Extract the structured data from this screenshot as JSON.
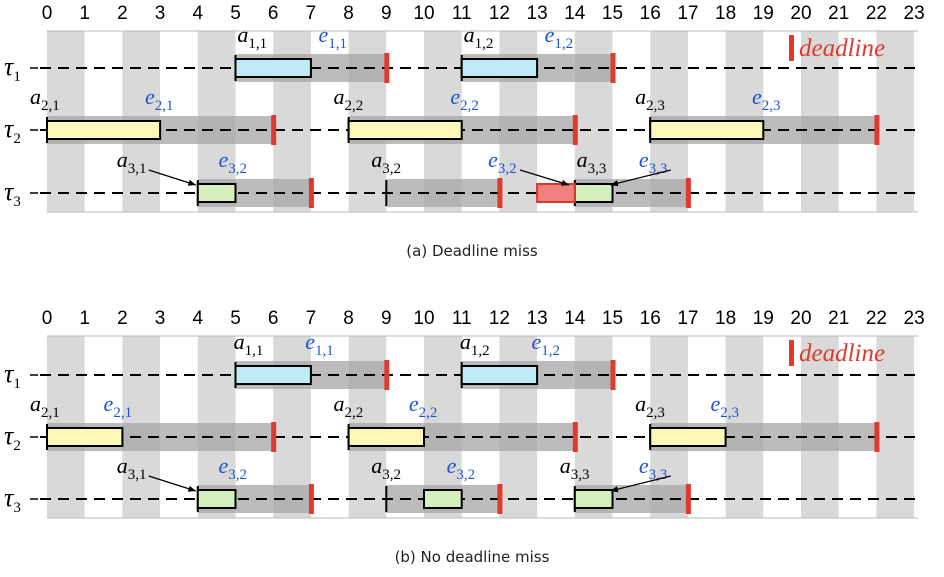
{
  "legend_label": "deadline",
  "time_ticks": [
    "0",
    "1",
    "2",
    "3",
    "4",
    "5",
    "6",
    "7",
    "8",
    "9",
    "10",
    "11",
    "12",
    "13",
    "14",
    "15",
    "16",
    "17",
    "18",
    "19",
    "20",
    "21",
    "22",
    "23"
  ],
  "colors": {
    "stripe": "#d9d9d9",
    "window": "#a6a6a6",
    "window_dark": "#8c8c8c",
    "tau1": "#bfeaf7",
    "tau2": "#fdf7b8",
    "tau3": "#d6f0bd",
    "miss": "#f08080",
    "deadline": "#e03a2f",
    "exec_label": "#1f55d0"
  },
  "panels": [
    {
      "caption": "(a) Deadline miss",
      "tasks": [
        {
          "name": "τ",
          "sub": "1",
          "arrivals": [
            5,
            11
          ],
          "deadlines": [
            9,
            15
          ],
          "windows": [
            [
              5,
              9
            ],
            [
              11,
              15
            ]
          ],
          "jobs": [
            [
              5,
              7
            ],
            [
              11,
              13
            ]
          ],
          "misses": [],
          "labels": [
            {
              "t": 5.05,
              "base": "a",
              "sub": "1,1",
              "kind": "arrival"
            },
            {
              "t": 7.2,
              "base": "e",
              "sub": "1,1",
              "kind": "exec"
            },
            {
              "t": 11.05,
              "base": "a",
              "sub": "1,2",
              "kind": "arrival"
            },
            {
              "t": 13.2,
              "base": "e",
              "sub": "1,2",
              "kind": "exec"
            }
          ]
        },
        {
          "name": "τ",
          "sub": "2",
          "arrivals": [
            0,
            8,
            16
          ],
          "deadlines": [
            6,
            14,
            22
          ],
          "windows": [
            [
              0,
              6
            ],
            [
              8,
              14
            ],
            [
              16,
              22
            ]
          ],
          "jobs": [
            [
              0,
              3
            ],
            [
              8,
              11
            ],
            [
              16,
              19
            ]
          ],
          "misses": [],
          "labels": [
            {
              "t": -0.45,
              "base": "a",
              "sub": "2,1",
              "kind": "arrival"
            },
            {
              "t": 2.6,
              "base": "e",
              "sub": "2,1",
              "kind": "exec"
            },
            {
              "t": 7.6,
              "base": "a",
              "sub": "2,2",
              "kind": "arrival"
            },
            {
              "t": 10.7,
              "base": "e",
              "sub": "2,2",
              "kind": "exec"
            },
            {
              "t": 15.6,
              "base": "a",
              "sub": "2,3",
              "kind": "arrival"
            },
            {
              "t": 18.7,
              "base": "e",
              "sub": "2,3",
              "kind": "exec"
            }
          ]
        },
        {
          "name": "τ",
          "sub": "3",
          "arrivals": [
            4,
            9,
            14
          ],
          "deadlines": [
            7,
            12,
            17
          ],
          "windows": [
            [
              4,
              7
            ],
            [
              9,
              12
            ],
            [
              14,
              17
            ]
          ],
          "jobs": [
            [
              4,
              5
            ],
            [
              14,
              15
            ]
          ],
          "misses": [
            [
              13,
              14
            ]
          ],
          "labels": [
            {
              "t": 1.85,
              "base": "a",
              "sub": "3,1",
              "kind": "arrival",
              "arrow_to": 4
            },
            {
              "t": 4.55,
              "base": "e",
              "sub": "3,2",
              "kind": "exec"
            },
            {
              "t": 8.6,
              "base": "a",
              "sub": "3,2",
              "kind": "arrival"
            },
            {
              "t": 11.7,
              "base": "e",
              "sub": "3,2",
              "kind": "exec",
              "arrow_to": 13.9
            },
            {
              "t": 14.05,
              "base": "a",
              "sub": "3,3",
              "kind": "arrival"
            },
            {
              "t": 15.7,
              "base": "e",
              "sub": "3,3",
              "kind": "exec",
              "arrow_to": 15
            }
          ]
        }
      ]
    },
    {
      "caption": "(b) No deadline miss",
      "tasks": [
        {
          "name": "τ",
          "sub": "1",
          "arrivals": [
            5,
            11
          ],
          "deadlines": [
            9,
            15
          ],
          "windows": [
            [
              5,
              9
            ],
            [
              11,
              15
            ]
          ],
          "jobs": [
            [
              5,
              7
            ],
            [
              11,
              13
            ]
          ],
          "misses": [],
          "labels": [
            {
              "t": 4.95,
              "base": "a",
              "sub": "1,1",
              "kind": "arrival"
            },
            {
              "t": 6.85,
              "base": "e",
              "sub": "1,1",
              "kind": "exec"
            },
            {
              "t": 10.95,
              "base": "a",
              "sub": "1,2",
              "kind": "arrival"
            },
            {
              "t": 12.85,
              "base": "e",
              "sub": "1,2",
              "kind": "exec"
            }
          ]
        },
        {
          "name": "τ",
          "sub": "2",
          "arrivals": [
            0,
            8,
            16
          ],
          "deadlines": [
            6,
            14,
            22
          ],
          "windows": [
            [
              0,
              6
            ],
            [
              8,
              14
            ],
            [
              16,
              22
            ]
          ],
          "jobs": [
            [
              0,
              2
            ],
            [
              8,
              10
            ],
            [
              16,
              18
            ]
          ],
          "misses": [],
          "labels": [
            {
              "t": -0.45,
              "base": "a",
              "sub": "2,1",
              "kind": "arrival"
            },
            {
              "t": 1.5,
              "base": "e",
              "sub": "2,1",
              "kind": "exec"
            },
            {
              "t": 7.6,
              "base": "a",
              "sub": "2,2",
              "kind": "arrival"
            },
            {
              "t": 9.6,
              "base": "e",
              "sub": "2,2",
              "kind": "exec"
            },
            {
              "t": 15.6,
              "base": "a",
              "sub": "2,3",
              "kind": "arrival"
            },
            {
              "t": 17.6,
              "base": "e",
              "sub": "2,3",
              "kind": "exec"
            }
          ]
        },
        {
          "name": "τ",
          "sub": "3",
          "arrivals": [
            4,
            9,
            14
          ],
          "deadlines": [
            7,
            12,
            17
          ],
          "windows": [
            [
              4,
              7
            ],
            [
              9,
              12
            ],
            [
              14,
              17
            ]
          ],
          "jobs": [
            [
              4,
              5
            ],
            [
              10,
              11
            ],
            [
              14,
              15
            ]
          ],
          "misses": [],
          "labels": [
            {
              "t": 1.85,
              "base": "a",
              "sub": "3,1",
              "kind": "arrival",
              "arrow_to": 4
            },
            {
              "t": 4.55,
              "base": "e",
              "sub": "3,2",
              "kind": "exec"
            },
            {
              "t": 8.6,
              "base": "a",
              "sub": "3,2",
              "kind": "arrival"
            },
            {
              "t": 10.6,
              "base": "e",
              "sub": "3,2",
              "kind": "exec"
            },
            {
              "t": 13.6,
              "base": "a",
              "sub": "3,3",
              "kind": "arrival"
            },
            {
              "t": 15.7,
              "base": "e",
              "sub": "3,3",
              "kind": "exec",
              "arrow_to": 15
            }
          ]
        }
      ]
    }
  ]
}
